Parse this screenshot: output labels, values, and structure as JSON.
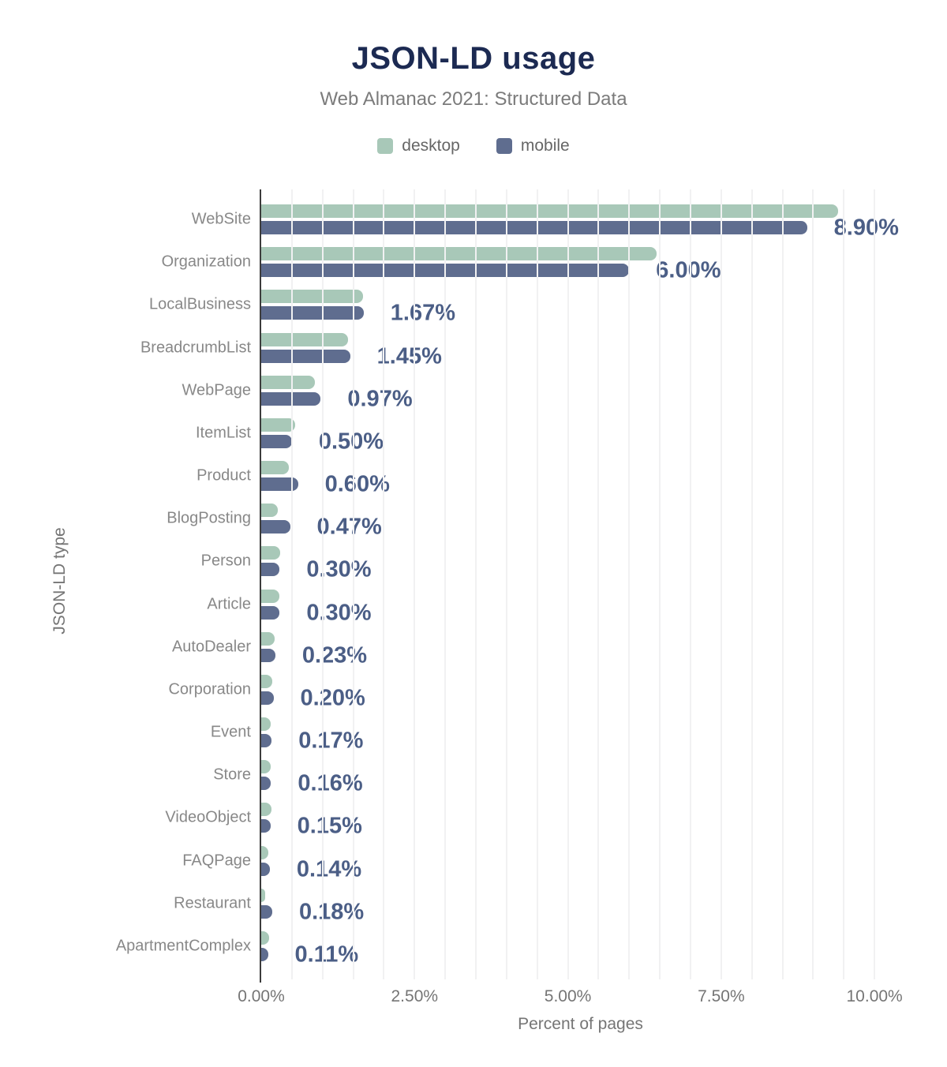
{
  "chart_data": {
    "type": "bar",
    "orientation": "horizontal",
    "title": "JSON-LD usage",
    "subtitle": "Web Almanac 2021: Structured Data",
    "xlabel": "Percent of pages",
    "ylabel": "JSON-LD type",
    "xlim": [
      0,
      10.41
    ],
    "grid": "vertical",
    "gridline_step": 0.5,
    "legend_position": "top",
    "xticks": [
      {
        "label": "0.00%",
        "value": 0
      },
      {
        "label": "2.50%",
        "value": 2.5
      },
      {
        "label": "5.00%",
        "value": 5
      },
      {
        "label": "7.50%",
        "value": 7.5
      },
      {
        "label": "10.00%",
        "value": 10
      }
    ],
    "categories": [
      "WebSite",
      "Organization",
      "LocalBusiness",
      "BreadcrumbList",
      "WebPage",
      "ItemList",
      "Product",
      "BlogPosting",
      "Person",
      "Article",
      "AutoDealer",
      "Corporation",
      "Event",
      "Store",
      "VideoObject",
      "FAQPage",
      "Restaurant",
      "ApartmentComplex"
    ],
    "series": [
      {
        "name": "desktop",
        "color": "#a8c8b8",
        "values": [
          9.4,
          6.45,
          1.66,
          1.41,
          0.88,
          0.55,
          0.45,
          0.27,
          0.31,
          0.3,
          0.22,
          0.18,
          0.16,
          0.16,
          0.17,
          0.12,
          0.06,
          0.13
        ]
      },
      {
        "name": "mobile",
        "color": "#5f6d8f",
        "values": [
          8.9,
          6.0,
          1.67,
          1.45,
          0.97,
          0.5,
          0.6,
          0.47,
          0.3,
          0.3,
          0.23,
          0.2,
          0.17,
          0.16,
          0.15,
          0.14,
          0.18,
          0.11
        ]
      }
    ],
    "value_labels": [
      "8.90%",
      "6.00%",
      "1.67%",
      "1.45%",
      "0.97%",
      "0.50%",
      "0.60%",
      "0.47%",
      "0.30%",
      "0.30%",
      "0.23%",
      "0.20%",
      "0.17%",
      "0.16%",
      "0.15%",
      "0.14%",
      "0.18%",
      "0.11%"
    ],
    "value_label_series": "mobile"
  },
  "colors": {
    "title": "#1c2a52",
    "subtitle": "#7b7b7b",
    "legend_text": "#666666",
    "value_label": "#4b5e86",
    "category_label": "#888888",
    "tick_label": "#757575",
    "axis_title": "#757575",
    "axis_line": "#3c3c3c",
    "gridline": "#f1f1f2",
    "background": "#ffffff"
  }
}
